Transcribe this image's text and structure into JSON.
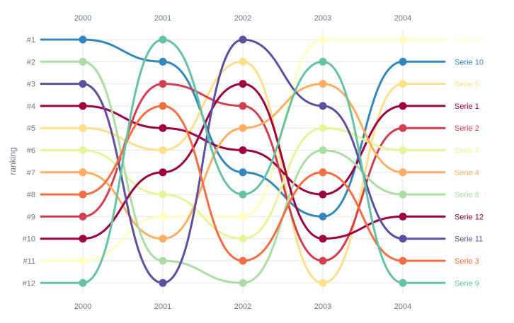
{
  "chart_data": {
    "type": "line",
    "subtype": "bump",
    "title": "",
    "xlabel": "",
    "ylabel": "ranking",
    "x": [
      "2000",
      "2001",
      "2002",
      "2003",
      "2004"
    ],
    "y_ticks": [
      "#1",
      "#2",
      "#3",
      "#4",
      "#5",
      "#6",
      "#7",
      "#8",
      "#9",
      "#10",
      "#11",
      "#12"
    ],
    "ylim": [
      1,
      12
    ],
    "y_reversed": true,
    "grid": true,
    "legend": "end-labels-right",
    "series": [
      {
        "name": "Serie 6",
        "color": "#ffffbf",
        "values": [
          11,
          9,
          9,
          1,
          1
        ]
      },
      {
        "name": "Serie 10",
        "color": "#3288bd",
        "values": [
          1,
          2,
          7,
          9,
          2
        ]
      },
      {
        "name": "Serie 5",
        "color": "#fee08b",
        "values": [
          5,
          6,
          2,
          12,
          3
        ]
      },
      {
        "name": "Serie 1",
        "color": "#9e0142",
        "values": [
          4,
          5,
          6,
          8,
          4
        ]
      },
      {
        "name": "Serie 2",
        "color": "#d53e4f",
        "values": [
          9,
          3,
          4,
          11,
          5
        ]
      },
      {
        "name": "Serie 7",
        "color": "#e6f598",
        "values": [
          6,
          8,
          10,
          5,
          6
        ]
      },
      {
        "name": "Serie 4",
        "color": "#fdae61",
        "values": [
          7,
          10,
          5,
          3,
          7
        ]
      },
      {
        "name": "Serie 8",
        "color": "#abdda4",
        "values": [
          2,
          11,
          12,
          6,
          8
        ]
      },
      {
        "name": "Serie 12",
        "color": "#9e0142",
        "values": [
          10,
          7,
          3,
          10,
          9
        ]
      },
      {
        "name": "Serie 11",
        "color": "#5e4fa2",
        "values": [
          3,
          12,
          1,
          4,
          10
        ]
      },
      {
        "name": "Serie 3",
        "color": "#f46d43",
        "values": [
          8,
          4,
          11,
          7,
          11
        ]
      },
      {
        "name": "Serie 9",
        "color": "#66c2a5",
        "values": [
          12,
          1,
          8,
          2,
          12
        ]
      }
    ]
  }
}
